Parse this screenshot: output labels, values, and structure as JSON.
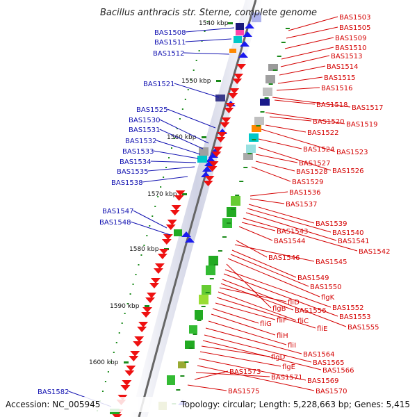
{
  "title": "Bacillus anthracis str. Sterne, complete genome",
  "footer": {
    "accession": "Accession: NC_005945",
    "summary": "Topology: circular; Length: 5,228,663 bp; Genes: 5,415"
  },
  "colors": {
    "left_label": "#1010b0",
    "right_label": "#d40000",
    "left_arrow": "#1a1aee",
    "right_arrow": "#ee1111",
    "tick": "#1a8a1a"
  },
  "kbp_ticks": [
    "1540 kbp",
    "1550 kbp",
    "1560 kbp",
    "1570 kbp",
    "1580 kbp",
    "1590 kbp",
    "1600 kbp"
  ],
  "left_labels": [
    "BAS1508",
    "BAS1511",
    "BAS1512",
    "BAS1521",
    "BAS1525",
    "BAS1530",
    "BAS1531",
    "BAS1532",
    "BAS1533",
    "BAS1534",
    "BAS1535",
    "BAS1538",
    "BAS1547",
    "BAS1548",
    "BAS1582"
  ],
  "right_labels": [
    "BAS1503",
    "BAS1505",
    "BAS1509",
    "BAS1510",
    "BAS1513",
    "BAS1514",
    "BAS1515",
    "BAS1516",
    "BAS1517",
    "BAS1518",
    "BAS1519",
    "BAS1520",
    "BAS1522",
    "BAS1523",
    "BAS1524",
    "BAS1526",
    "BAS1527",
    "BAS1528",
    "BAS1529",
    "BAS1536",
    "BAS1537",
    "BAS1539",
    "BAS1540",
    "BAS1541",
    "BAS1542",
    "BAS1543",
    "BAS1544",
    "BAS1545",
    "BAS1546",
    "BAS1549",
    "BAS1550",
    "flgK",
    "flgB",
    "BAS1552",
    "BAS1553",
    "BAS1555",
    "BAS1556",
    "fliD",
    "fliC",
    "fliE",
    "fliF",
    "fliG",
    "fliH",
    "fliI",
    "BAS1564",
    "BAS1565",
    "BAS1566",
    "flgD",
    "flgE",
    "BAS1569",
    "BAS1570",
    "BAS1571",
    "BAS1573",
    "BAS1575"
  ]
}
